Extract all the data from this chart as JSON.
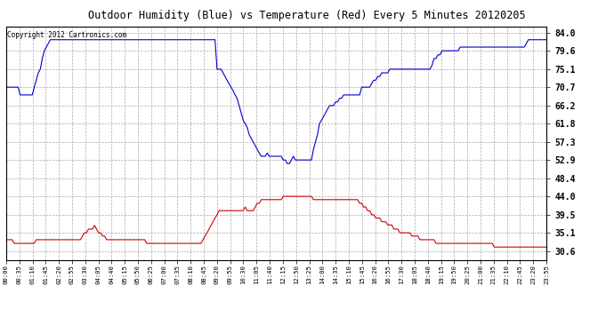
{
  "title": "Outdoor Humidity (Blue) vs Temperature (Red) Every 5 Minutes 20120205",
  "copyright_text": "Copyright 2012 Cartronics.com",
  "background_color": "#ffffff",
  "plot_bg_color": "#ffffff",
  "grid_color": "#aaaaaa",
  "blue_color": "#0000cc",
  "red_color": "#cc0000",
  "y_ticks": [
    30.6,
    35.1,
    39.5,
    44.0,
    48.4,
    52.9,
    57.3,
    61.8,
    66.2,
    70.7,
    75.1,
    79.6,
    84.0
  ],
  "y_min": 28.5,
  "y_max": 85.5,
  "x_tick_labels": [
    "00:00",
    "00:35",
    "01:10",
    "01:45",
    "02:20",
    "02:55",
    "03:30",
    "04:05",
    "04:40",
    "05:15",
    "05:50",
    "06:25",
    "07:00",
    "07:35",
    "08:10",
    "08:45",
    "09:20",
    "09:55",
    "10:30",
    "11:05",
    "11:40",
    "12:15",
    "12:50",
    "13:25",
    "14:00",
    "14:35",
    "15:10",
    "15:45",
    "16:20",
    "16:55",
    "17:30",
    "18:05",
    "18:40",
    "19:15",
    "19:50",
    "20:25",
    "21:00",
    "21:35",
    "22:10",
    "22:45",
    "23:20",
    "23:55"
  ],
  "humidity_data": [
    70.7,
    70.7,
    70.7,
    70.7,
    70.7,
    70.7,
    70.7,
    68.8,
    68.8,
    68.8,
    68.8,
    68.8,
    68.8,
    68.8,
    70.7,
    72.4,
    74.2,
    75.1,
    77.7,
    79.6,
    80.5,
    81.4,
    82.3,
    82.3,
    82.3,
    82.3,
    82.3,
    82.3,
    82.3,
    82.3,
    82.3,
    82.3,
    82.3,
    82.3,
    82.3,
    82.3,
    82.3,
    82.3,
    82.3,
    82.3,
    82.3,
    82.3,
    82.3,
    82.3,
    82.3,
    82.3,
    82.3,
    82.3,
    82.3,
    82.3,
    82.3,
    82.3,
    82.3,
    82.3,
    82.3,
    82.3,
    82.3,
    82.3,
    82.3,
    82.3,
    82.3,
    82.3,
    82.3,
    82.3,
    82.3,
    82.3,
    82.3,
    82.3,
    82.3,
    82.3,
    82.3,
    82.3,
    82.3,
    82.3,
    82.3,
    82.3,
    82.3,
    82.3,
    82.3,
    82.3,
    82.3,
    82.3,
    82.3,
    82.3,
    82.3,
    82.3,
    82.3,
    82.3,
    82.3,
    82.3,
    82.3,
    82.3,
    82.3,
    82.3,
    82.3,
    82.3,
    82.3,
    82.3,
    82.3,
    82.3,
    82.3,
    82.3,
    82.3,
    82.3,
    82.3,
    75.1,
    75.1,
    75.1,
    74.2,
    73.3,
    72.4,
    71.5,
    70.7,
    69.8,
    68.8,
    67.9,
    66.2,
    64.4,
    62.6,
    61.8,
    60.9,
    59.1,
    58.2,
    57.3,
    56.4,
    55.5,
    54.6,
    53.8,
    53.8,
    53.8,
    54.6,
    53.8,
    53.8,
    53.8,
    53.8,
    53.8,
    53.8,
    53.8,
    52.9,
    52.9,
    52.0,
    52.0,
    52.9,
    53.8,
    52.9,
    52.9,
    52.9,
    52.9,
    52.9,
    52.9,
    52.9,
    52.9,
    52.9,
    55.5,
    57.3,
    59.1,
    61.8,
    62.6,
    63.5,
    64.4,
    65.3,
    66.2,
    66.2,
    66.2,
    67.1,
    67.1,
    68.0,
    68.0,
    68.8,
    68.8,
    68.8,
    68.8,
    68.8,
    68.8,
    68.8,
    68.8,
    68.8,
    70.7,
    70.7,
    70.7,
    70.7,
    70.7,
    71.6,
    72.4,
    72.4,
    73.3,
    73.3,
    74.2,
    74.2,
    74.2,
    74.2,
    75.1,
    75.1,
    75.1,
    75.1,
    75.1,
    75.1,
    75.1,
    75.1,
    75.1,
    75.1,
    75.1,
    75.1,
    75.1,
    75.1,
    75.1,
    75.1,
    75.1,
    75.1,
    75.1,
    75.1,
    75.1,
    76.0,
    77.7,
    77.7,
    78.6,
    78.6,
    79.6,
    79.6,
    79.6,
    79.6,
    79.6,
    79.6,
    79.6,
    79.6,
    79.6,
    80.5,
    80.5,
    80.5,
    80.5,
    80.5,
    80.5,
    80.5,
    80.5,
    80.5,
    80.5,
    80.5,
    80.5,
    80.5,
    80.5,
    80.5,
    80.5,
    80.5,
    80.5,
    80.5,
    80.5,
    80.5,
    80.5,
    80.5,
    80.5,
    80.5,
    80.5,
    80.5,
    80.5,
    80.5,
    80.5,
    80.5,
    80.5,
    80.5,
    81.4,
    82.3,
    82.3,
    82.3,
    82.3,
    82.3,
    82.3,
    82.3,
    82.3,
    82.3,
    82.3
  ],
  "temperature_data": [
    33.4,
    33.4,
    33.4,
    33.4,
    32.5,
    32.5,
    32.5,
    32.5,
    32.5,
    32.5,
    32.5,
    32.5,
    32.5,
    32.5,
    32.5,
    33.4,
    33.4,
    33.4,
    33.4,
    33.4,
    33.4,
    33.4,
    33.4,
    33.4,
    33.4,
    33.4,
    33.4,
    33.4,
    33.4,
    33.4,
    33.4,
    33.4,
    33.4,
    33.4,
    33.4,
    33.4,
    33.4,
    33.4,
    34.3,
    35.1,
    35.1,
    36.0,
    36.0,
    36.0,
    36.9,
    36.0,
    35.1,
    35.1,
    34.3,
    34.3,
    33.4,
    33.4,
    33.4,
    33.4,
    33.4,
    33.4,
    33.4,
    33.4,
    33.4,
    33.4,
    33.4,
    33.4,
    33.4,
    33.4,
    33.4,
    33.4,
    33.4,
    33.4,
    33.4,
    33.4,
    32.5,
    32.5,
    32.5,
    32.5,
    32.5,
    32.5,
    32.5,
    32.5,
    32.5,
    32.5,
    32.5,
    32.5,
    32.5,
    32.5,
    32.5,
    32.5,
    32.5,
    32.5,
    32.5,
    32.5,
    32.5,
    32.5,
    32.5,
    32.5,
    32.5,
    32.5,
    32.5,
    32.5,
    33.4,
    34.3,
    35.1,
    36.0,
    36.9,
    37.8,
    38.7,
    39.5,
    40.5,
    40.5,
    40.5,
    40.5,
    40.5,
    40.5,
    40.5,
    40.5,
    40.5,
    40.5,
    40.5,
    40.5,
    40.5,
    41.4,
    40.5,
    40.5,
    40.5,
    40.5,
    41.4,
    42.3,
    42.3,
    43.2,
    43.2,
    43.2,
    43.2,
    43.2,
    43.2,
    43.2,
    43.2,
    43.2,
    43.2,
    43.2,
    44.0,
    44.0,
    44.0,
    44.0,
    44.0,
    44.0,
    44.0,
    44.0,
    44.0,
    44.0,
    44.0,
    44.0,
    44.0,
    44.0,
    44.0,
    43.2,
    43.2,
    43.2,
    43.2,
    43.2,
    43.2,
    43.2,
    43.2,
    43.2,
    43.2,
    43.2,
    43.2,
    43.2,
    43.2,
    43.2,
    43.2,
    43.2,
    43.2,
    43.2,
    43.2,
    43.2,
    43.2,
    43.2,
    42.3,
    42.3,
    41.4,
    41.4,
    40.5,
    40.5,
    39.5,
    39.5,
    38.7,
    38.7,
    38.7,
    37.8,
    37.8,
    37.8,
    37.0,
    37.0,
    37.0,
    36.0,
    36.0,
    36.0,
    35.1,
    35.1,
    35.1,
    35.1,
    35.1,
    35.1,
    34.3,
    34.3,
    34.3,
    34.3,
    33.4,
    33.4,
    33.4,
    33.4,
    33.4,
    33.4,
    33.4,
    33.4,
    32.5,
    32.5,
    32.5,
    32.5,
    32.5,
    32.5,
    32.5,
    32.5,
    32.5,
    32.5,
    32.5,
    32.5,
    32.5,
    32.5,
    32.5,
    32.5,
    32.5,
    32.5,
    32.5,
    32.5,
    32.5,
    32.5,
    32.5,
    32.5,
    32.5,
    32.5,
    32.5,
    32.5,
    32.5,
    31.6,
    31.6,
    31.6,
    31.6,
    31.6,
    31.6,
    31.6,
    31.6,
    31.6,
    31.6,
    31.6,
    31.6,
    31.6,
    31.6,
    31.6,
    31.6,
    31.6,
    31.6,
    31.6,
    31.6,
    31.6,
    31.6,
    31.6,
    31.6,
    31.6,
    31.6,
    31.6
  ]
}
